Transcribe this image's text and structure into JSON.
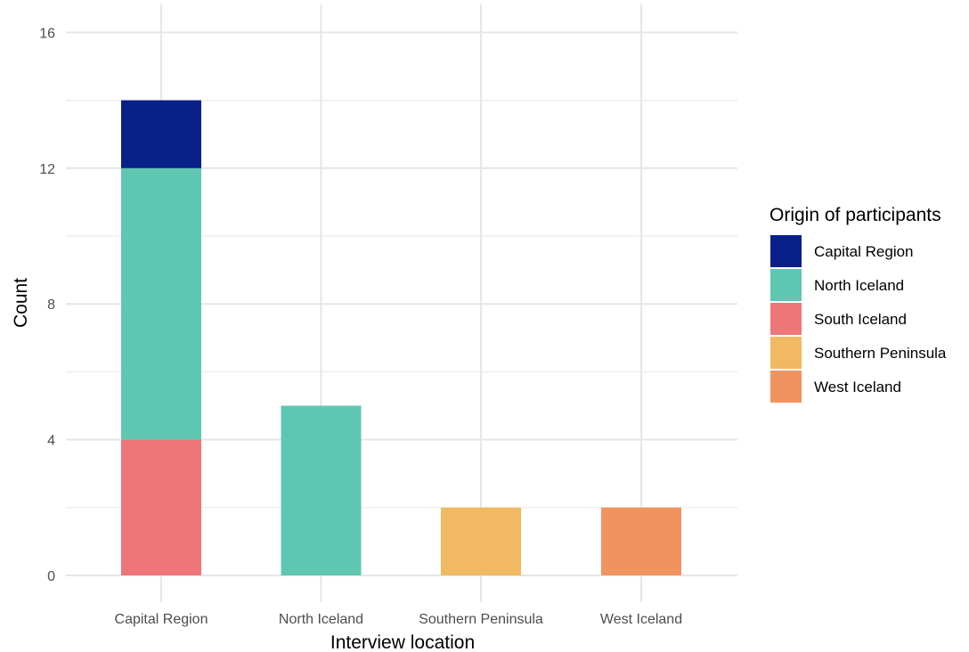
{
  "chart_data": {
    "type": "bar",
    "stacked": true,
    "categories": [
      "Capital Region",
      "North Iceland",
      "Southern Peninsula",
      "West Iceland"
    ],
    "series": [
      {
        "name": "Capital Region",
        "color": "#08208A",
        "values": [
          2,
          0,
          0,
          0
        ]
      },
      {
        "name": "North Iceland",
        "color": "#5FC7B1",
        "values": [
          8,
          5,
          0,
          0
        ]
      },
      {
        "name": "South Iceland",
        "color": "#EE7678",
        "values": [
          4,
          0,
          0,
          0
        ]
      },
      {
        "name": "Southern Peninsula",
        "color": "#F0B962",
        "values": [
          0,
          0,
          2,
          0
        ]
      },
      {
        "name": "West Iceland",
        "color": "#F1935F",
        "values": [
          0,
          0,
          0,
          2
        ]
      }
    ],
    "stack_order_bottom_to_top": [
      "South Iceland",
      "North Iceland",
      "Capital Region",
      "Southern Peninsula",
      "West Iceland"
    ],
    "xlabel": "Interview location",
    "ylabel": "Count",
    "ylim": [
      0,
      16
    ],
    "yticks": [
      0,
      4,
      8,
      12,
      16
    ],
    "grid": true,
    "legend": {
      "title": "Origin of participants",
      "position": "right"
    }
  }
}
